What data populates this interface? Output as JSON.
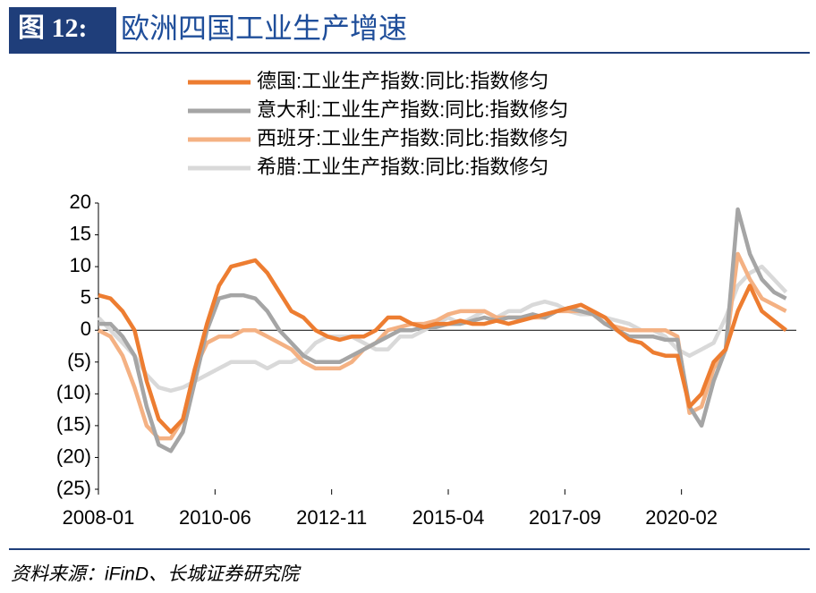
{
  "chart_data": {
    "type": "line",
    "figure_label": "图 12:",
    "title": "欧洲四国工业生产增速",
    "source": "资料来源：iFinD、长城证券研究院",
    "x": [
      "2008-01",
      "2008-04",
      "2008-07",
      "2008-10",
      "2009-01",
      "2009-04",
      "2009-07",
      "2009-10",
      "2010-01",
      "2010-04",
      "2010-07",
      "2010-10",
      "2011-01",
      "2011-04",
      "2011-07",
      "2011-10",
      "2012-01",
      "2012-04",
      "2012-07",
      "2012-10",
      "2013-01",
      "2013-04",
      "2013-07",
      "2013-10",
      "2014-01",
      "2014-04",
      "2014-07",
      "2014-10",
      "2015-01",
      "2015-04",
      "2015-07",
      "2015-10",
      "2016-01",
      "2016-04",
      "2016-07",
      "2016-10",
      "2017-01",
      "2017-04",
      "2017-07",
      "2017-10",
      "2018-01",
      "2018-04",
      "2018-07",
      "2018-10",
      "2019-01",
      "2019-04",
      "2019-07",
      "2019-10",
      "2020-01",
      "2020-04",
      "2020-07",
      "2020-10",
      "2021-01",
      "2021-04",
      "2021-07",
      "2021-10",
      "2022-01",
      "2022-04"
    ],
    "xlim": [
      "2008-01",
      "2022-05"
    ],
    "xticks": [
      "2008-01",
      "2010-06",
      "2012-11",
      "2015-04",
      "2017-09",
      "2020-02"
    ],
    "ylim": [
      -25,
      20
    ],
    "yticks": [
      20,
      15,
      10,
      5,
      0,
      {
        "value": -5,
        "label": "(5)"
      },
      {
        "value": -10,
        "label": "(10)"
      },
      {
        "value": -15,
        "label": "(15)"
      },
      {
        "value": -20,
        "label": "(20)"
      },
      {
        "value": -25,
        "label": "(25)"
      }
    ],
    "negative_tick_color": "#e00000",
    "series": [
      {
        "name": "德国:工业生产指数:同比:指数修匀",
        "color": "#ed7d31",
        "values": [
          5.5,
          5,
          3,
          0,
          -8,
          -14,
          -16,
          -14,
          -6,
          1,
          7,
          10,
          10.5,
          11,
          9,
          6,
          3,
          2,
          0,
          -1,
          -1.5,
          -1,
          -1,
          0,
          2,
          2,
          1,
          0.5,
          1,
          1,
          1.5,
          1,
          1,
          1.5,
          1,
          1.5,
          2,
          2.5,
          3,
          3.5,
          4,
          3,
          2,
          0,
          -1.5,
          -2,
          -3.5,
          -4,
          -4,
          -12,
          -10,
          -5,
          -3,
          3,
          7,
          3,
          1.5,
          0
        ]
      },
      {
        "name": "意大利:工业生产指数:同比:指数修匀",
        "color": "#a5a5a5",
        "values": [
          1,
          1,
          -1,
          -4,
          -12,
          -18,
          -19,
          -16,
          -8,
          0,
          5,
          5.5,
          5.5,
          5,
          3,
          0,
          -2,
          -4,
          -5,
          -5,
          -5,
          -4,
          -3,
          -2,
          -1,
          0,
          0,
          0.5,
          0.5,
          1,
          1,
          1.5,
          2,
          1.5,
          2,
          2,
          2.5,
          2,
          3,
          3.5,
          3,
          2.5,
          1,
          0,
          -1,
          -1,
          -1,
          -1.5,
          -1.5,
          -12,
          -15,
          -8,
          -3,
          19,
          12,
          8,
          6,
          5
        ]
      },
      {
        "name": "西班牙:工业生产指数:同比:指数修匀",
        "color": "#f4b183",
        "values": [
          0,
          -1,
          -4,
          -9,
          -15,
          -17,
          -17,
          -14,
          -6,
          -2,
          -1,
          -1,
          0,
          0,
          -1,
          -2,
          -3,
          -5,
          -6,
          -6,
          -6,
          -5,
          -3,
          -2,
          0,
          0.5,
          1,
          1,
          1.5,
          2.5,
          3,
          3,
          3,
          2,
          2,
          2,
          2,
          2,
          3,
          3,
          3,
          2.5,
          1,
          0.5,
          0,
          0,
          0,
          0,
          -1,
          -13,
          -12,
          -6,
          -3,
          12,
          8,
          5,
          4,
          3
        ]
      },
      {
        "name": "希腊:工业生产指数:同比:指数修匀",
        "color": "#d9d9d9",
        "values": [
          2,
          0,
          -2,
          -4,
          -7,
          -9,
          -9.5,
          -9,
          -8,
          -7,
          -6,
          -5,
          -5,
          -5,
          -6,
          -5,
          -5,
          -4,
          -2,
          -1,
          -1,
          -1,
          -2,
          -3,
          -3,
          -1,
          -1,
          0,
          1,
          2,
          1,
          2,
          3,
          2,
          3,
          3,
          4,
          4.5,
          4,
          3,
          2.5,
          2.5,
          2,
          1.5,
          1,
          0,
          0,
          -1,
          -3,
          -4,
          -3,
          -2,
          2,
          7,
          9,
          10,
          8,
          6
        ]
      }
    ]
  }
}
